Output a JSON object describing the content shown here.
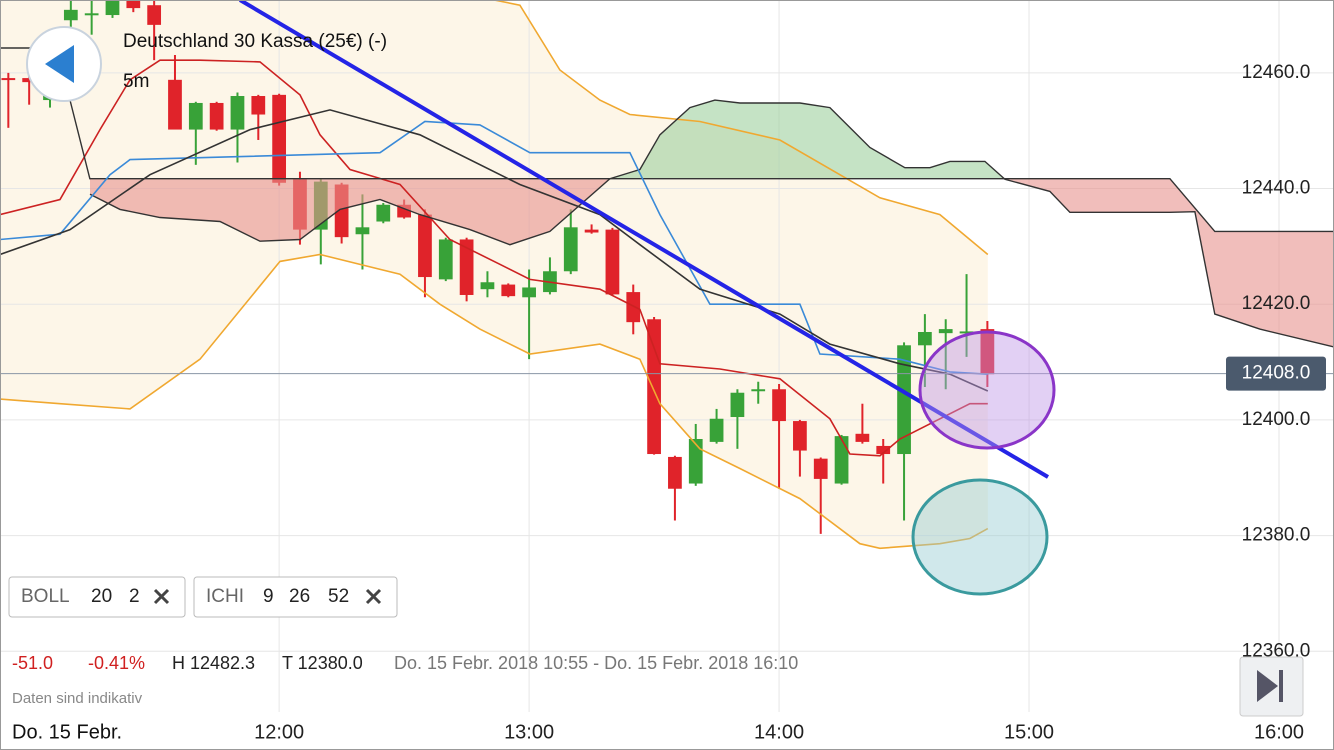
{
  "header": {
    "title": "Deutschland 30 Kassa (25€) (-)",
    "interval": "5m"
  },
  "indicators": [
    {
      "name": "BOLL",
      "params": [
        "20",
        "2"
      ]
    },
    {
      "name": "ICHI",
      "params": [
        "9",
        "26",
        "52"
      ]
    }
  ],
  "stats": {
    "change": "-51.0",
    "change_pct": "-0.41%",
    "high": "H 12482.3",
    "low": "T 12380.0",
    "range": "Do. 15 Febr. 2018 10:55 - Do. 15 Febr. 2018 16:10"
  },
  "note": "Daten sind indikativ",
  "date_label": "Do. 15 Febr.",
  "chart_data": {
    "type": "candlestick",
    "xlim": [
      653,
      973.2
    ],
    "xticks": [
      {
        "value": 720,
        "label": "12:00"
      },
      {
        "value": 780,
        "label": "13:00"
      },
      {
        "value": 840,
        "label": "14:00"
      },
      {
        "value": 900,
        "label": "15:00"
      },
      {
        "value": 960,
        "label": "16:00"
      }
    ],
    "ylim": [
      12349.5,
      12472.6
    ],
    "yticks": [
      {
        "value": 12360,
        "label": "12360.0"
      },
      {
        "value": 12380,
        "label": "12380.0"
      },
      {
        "value": 12400,
        "label": "12400.0"
      },
      {
        "value": 12420,
        "label": "12420.0"
      },
      {
        "value": 12440,
        "label": "12440.0"
      },
      {
        "value": 12460,
        "label": "12460.0"
      }
    ],
    "grid": true,
    "up_color": "#38a238",
    "down_color": "#e0232a",
    "x": [
      655,
      660,
      665,
      670,
      675,
      680,
      685,
      690,
      695,
      700,
      705,
      710,
      715,
      720,
      725,
      730,
      735,
      740,
      745,
      750,
      755,
      760,
      765,
      770,
      775,
      780,
      785,
      790,
      795,
      800,
      805,
      810,
      815,
      820,
      825,
      830,
      835,
      840,
      845,
      850,
      855,
      860,
      865,
      870,
      875,
      880,
      885,
      890
    ],
    "open": [
      12459.1,
      12459.1,
      12455.3,
      12469.1,
      12470.0,
      12470.0,
      12472.6,
      12471.7,
      12458.8,
      12450.2,
      12454.8,
      12450.2,
      12456.0,
      12456.2,
      12441.6,
      12432.9,
      12440.7,
      12432.1,
      12434.3,
      12437.2,
      12435.5,
      12424.3,
      12431.2,
      12422.6,
      12423.4,
      12421.2,
      12422.1,
      12425.7,
      12432.9,
      12432.9,
      12422.1,
      12417.4,
      12393.6,
      12389.0,
      12396.2,
      12400.5,
      12405.0,
      12405.3,
      12399.8,
      12393.3,
      12389.0,
      12397.6,
      12395.5,
      12394.1,
      12412.9,
      12415.0,
      12415.2,
      12415.7
    ],
    "high": [
      12460.0,
      12459.7,
      12462.2,
      12472.6,
      12472.6,
      12472.6,
      12472.6,
      12472.6,
      12463.1,
      12455.0,
      12455.0,
      12456.6,
      12456.2,
      12456.4,
      12442.9,
      12441.6,
      12441.0,
      12439.0,
      12437.5,
      12438.1,
      12436.4,
      12431.5,
      12431.5,
      12425.7,
      12423.6,
      12426.0,
      12428.1,
      12436.4,
      12433.8,
      12433.2,
      12423.4,
      12417.8,
      12393.8,
      12399.3,
      12401.9,
      12405.3,
      12406.6,
      12406.2,
      12400.0,
      12393.5,
      12397.4,
      12402.8,
      12396.7,
      12413.4,
      12418.3,
      12417.4,
      12425.2,
      12417.1
    ],
    "low": [
      12450.5,
      12454.5,
      12454.0,
      12462.2,
      12466.6,
      12469.5,
      12470.5,
      12462.2,
      12450.2,
      12444.1,
      12450.0,
      12444.5,
      12448.4,
      12440.5,
      12430.3,
      12426.9,
      12430.5,
      12426.0,
      12434.0,
      12434.8,
      12421.2,
      12424.0,
      12420.5,
      12421.2,
      12421.2,
      12410.5,
      12421.7,
      12425.2,
      12432.2,
      12421.5,
      12414.8,
      12394.0,
      12382.6,
      12388.6,
      12395.9,
      12395.0,
      12402.8,
      12388.1,
      12390.2,
      12380.3,
      12388.8,
      12395.9,
      12389.0,
      12382.6,
      12405.7,
      12405.3,
      12410.9,
      12405.7
    ],
    "close": [
      12458.8,
      12458.4,
      12458.4,
      12470.9,
      12470.3,
      12472.6,
      12471.2,
      12468.3,
      12450.2,
      12454.8,
      12450.2,
      12456.0,
      12452.8,
      12441.0,
      12432.9,
      12441.2,
      12431.6,
      12433.3,
      12437.2,
      12435.0,
      12424.7,
      12431.2,
      12421.6,
      12423.8,
      12421.4,
      12422.9,
      12425.7,
      12433.3,
      12432.4,
      12421.7,
      12416.9,
      12394.1,
      12388.1,
      12396.7,
      12400.2,
      12404.7,
      12405.3,
      12399.8,
      12394.7,
      12389.8,
      12397.2,
      12396.2,
      12394.1,
      12412.9,
      12415.2,
      12415.7,
      12415.3,
      12407.9
    ],
    "last": {
      "value": 12408.0,
      "label": "12408.0"
    },
    "band": {
      "color": "#fdf6e8",
      "upper": {
        "color": "#f0a830",
        "x": [
          653,
          700,
          760,
          777.8,
          787.4,
          797,
          804.2,
          821,
          840.2,
          854.6,
          864.2,
          878.6,
          890.1
        ],
        "values": [
          12489.8,
          12482.9,
          12474.3,
          12471.7,
          12460.5,
          12455.3,
          12452.8,
          12451.6,
          12448.4,
          12442.4,
          12438.4,
          12435.5,
          12428.6
        ]
      },
      "lower": {
        "color": "#f0a830",
        "x": [
          653,
          667.4,
          684.2,
          701,
          720.2,
          729.8,
          749,
          758.6,
          768.2,
          780.2,
          797,
          806.6,
          811.4,
          821,
          830.6,
          845,
          859.4,
          864.2,
          878.6,
          885.8,
          890.1
        ],
        "values": [
          12403.6,
          12402.8,
          12401.9,
          12410.5,
          12427.4,
          12428.6,
          12425.2,
          12420.0,
          12415.7,
          12411.4,
          12413.1,
          12410.5,
          12402.8,
          12395.0,
          12391.6,
          12386.4,
          12378.6,
          12377.8,
          12378.6,
          12379.5,
          12381.2
        ]
      },
      "middle": {
        "color": "#cc2222",
        "x": [
          653,
          667.4,
          677,
          684.2,
          691.4,
          701,
          715.4,
          725,
          729.8,
          737,
          749,
          761,
          773,
          780.2,
          797,
          806.6,
          811.4,
          825.8,
          840.2,
          852.2,
          857,
          864.2,
          869,
          878.6,
          885.8,
          890.1
        ],
        "values": [
          12435.5,
          12438.1,
          12450.2,
          12458.8,
          12462.2,
          12462.2,
          12461.9,
          12456.2,
          12449.3,
          12443.3,
          12440.7,
          12431.2,
          12426.9,
          12424.3,
          12422.6,
          12419.1,
          12409.7,
          12408.8,
          12407.1,
          12400.2,
          12394.1,
          12393.8,
          12396.7,
          12400.2,
          12402.8,
          12402.8
        ]
      }
    },
    "ichimoku": {
      "tenkan": {
        "color": "#3a8ad8",
        "x": [
          653,
          667.4,
          679.4,
          684.2,
          744.2,
          755,
          768.2,
          780.2,
          804.2,
          811.4,
          823.4,
          845,
          849.8,
          869,
          881,
          890.1
        ],
        "values": [
          12431.2,
          12432.1,
          12442.4,
          12445.0,
          12446.2,
          12451.6,
          12451.0,
          12446.2,
          12446.2,
          12435.5,
          12420.0,
          12420.0,
          12411.4,
          12410.5,
          12408.3,
          12407.9
        ]
      },
      "kijun": {
        "color": "#333333",
        "x": [
          653,
          669.8,
          689,
          713,
          732.2,
          753.8,
          777.8,
          797,
          806.6,
          821,
          840.2,
          852.2,
          869,
          881,
          890.1
        ],
        "values": [
          12428.6,
          12432.9,
          12442.4,
          12450.2,
          12453.6,
          12449.3,
          12440.7,
          12435.5,
          12430.3,
          12422.6,
          12418.3,
          12413.1,
          12409.7,
          12407.9,
          12405.0
        ]
      },
      "chikou": {
        "color": "#333333",
        "x": [
          653,
          662.6,
          669.8,
          674.6
        ],
        "values": [
          12464.3,
          12464.3,
          12455.3,
          12441.6
        ]
      },
      "span_a": {
        "color": "#333333",
        "x": [
          674.6,
          681.8,
          691.4,
          705.8,
          715.4,
          725,
          734.6,
          744.2,
          753.8,
          765.8,
          775.4,
          785,
          799.4,
          806.6,
          811.4,
          818.6,
          824.6,
          830.6,
          845,
          852.2,
          861.8,
          870.2,
          876.2,
          881,
          889.4,
          894.2,
          905,
          909.8,
          933.8,
          939.8,
          944.6,
          955.4,
          973.2
        ],
        "values": [
          12439.0,
          12436.4,
          12435.0,
          12434.3,
          12430.9,
          12431.2,
          12436.4,
          12438.1,
          12435.5,
          12432.9,
          12430.3,
          12432.6,
          12441.7,
          12443.3,
          12449.3,
          12454.0,
          12455.3,
          12454.8,
          12454.8,
          12454.0,
          12447.1,
          12443.6,
          12443.6,
          12444.7,
          12444.7,
          12441.6,
          12439.5,
          12435.9,
          12435.9,
          12436.0,
          12418.3,
          12415.7,
          12412.6
        ]
      },
      "span_b": {
        "color": "#333333",
        "x": [
          674.6,
          933.8,
          944.6,
          973.2
        ],
        "values": [
          12441.7,
          12441.7,
          12432.6,
          12432.6
        ]
      },
      "up_color": "#9fd09f",
      "down_color": "#e8938e"
    }
  }
}
